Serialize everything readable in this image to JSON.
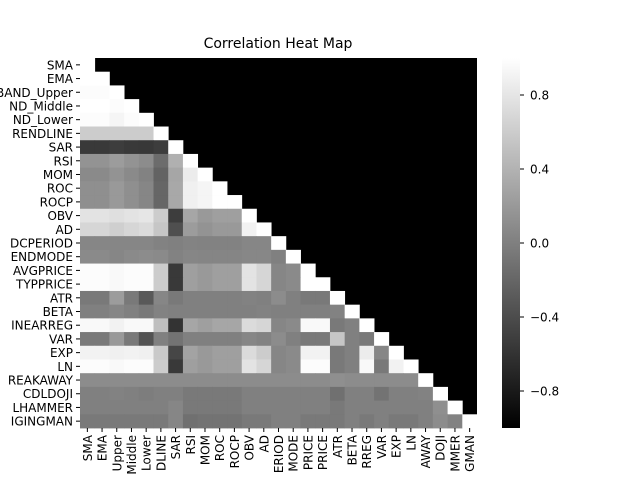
{
  "chart_data": {
    "type": "heatmap",
    "title": "Correlation Heat Map",
    "mask": "upper-triangle",
    "colormap": "grayscale",
    "labels": [
      "SMA",
      "EMA",
      "BBAND_Upper",
      "BBAND_Middle",
      "BBAND_Lower",
      "HT_TRENDLINE",
      "SAR",
      "RSI",
      "MOM",
      "ROC",
      "ROCP",
      "OBV",
      "AD",
      "HT_DCPERIOD",
      "HT_TRENDMODE",
      "AVGPRICE",
      "TYPPRICE",
      "ATR",
      "BETA",
      "LINEARREG",
      "VAR",
      "EXP",
      "LN",
      "CDLBREAKAWAY",
      "CDLDOJI",
      "CDLHAMMER",
      "CDLHANGINGMAN"
    ],
    "x_tick_labels": [
      "SMA",
      "EMA",
      "Upper",
      "Middle",
      "Lower",
      "DLINE",
      "SAR",
      "RSI",
      "MOM",
      "ROC",
      "ROCP",
      "OBV",
      "AD",
      "ERIOD",
      "MODE",
      "PRICE",
      "PRICE",
      "ATR",
      "BETA",
      "RREG",
      "VAR",
      "EXP",
      "LN",
      "AWAY",
      "DOJI",
      "MMER",
      "GMAN"
    ],
    "y_tick_labels": [
      "SMA",
      "EMA",
      "BAND_Upper",
      "ND_Middle",
      "ND_Lower",
      "RENDLINE",
      "SAR",
      "RSI",
      "MOM",
      "ROC",
      "ROCP",
      "OBV",
      "AD",
      "DCPERIOD",
      "ENDMODE",
      "AVGPRICE",
      "TYPPRICE",
      "ATR",
      "BETA",
      "INEARREG",
      "VAR",
      "EXP",
      "LN",
      "REAKAWAY",
      "CDLDOJI",
      "LHAMMER",
      "IGINGMAN"
    ],
    "matrix": [
      [
        1.0
      ],
      [
        1.0,
        1.0
      ],
      [
        0.98,
        0.98,
        1.0
      ],
      [
        1.0,
        1.0,
        0.98,
        1.0
      ],
      [
        0.98,
        0.98,
        0.92,
        0.98,
        1.0
      ],
      [
        0.6,
        0.6,
        0.6,
        0.6,
        0.6,
        1.0
      ],
      [
        -0.55,
        -0.55,
        -0.52,
        -0.55,
        -0.56,
        -0.52,
        1.0
      ],
      [
        0.15,
        0.15,
        0.22,
        0.15,
        0.1,
        -0.15,
        0.38,
        1.0
      ],
      [
        0.08,
        0.08,
        0.15,
        0.08,
        0.02,
        -0.22,
        0.3,
        0.85,
        1.0
      ],
      [
        0.12,
        0.12,
        0.2,
        0.12,
        0.05,
        -0.2,
        0.32,
        0.88,
        0.92,
        1.0
      ],
      [
        0.12,
        0.12,
        0.2,
        0.12,
        0.05,
        -0.2,
        0.32,
        0.88,
        0.92,
        1.0,
        1.0
      ],
      [
        0.78,
        0.78,
        0.75,
        0.78,
        0.8,
        0.6,
        -0.52,
        0.3,
        0.2,
        0.25,
        0.25,
        1.0
      ],
      [
        0.68,
        0.68,
        0.62,
        0.68,
        0.72,
        0.55,
        -0.38,
        0.22,
        0.15,
        0.2,
        0.2,
        0.9,
        1.0
      ],
      [
        0.05,
        0.05,
        0.05,
        0.05,
        0.05,
        0.02,
        0.0,
        0.03,
        0.02,
        0.02,
        0.02,
        0.05,
        0.05,
        1.0
      ],
      [
        0.08,
        0.08,
        0.05,
        0.08,
        0.1,
        0.08,
        0.02,
        0.05,
        0.04,
        0.04,
        0.04,
        0.06,
        0.06,
        0.0,
        1.0
      ],
      [
        0.98,
        0.98,
        0.95,
        0.98,
        0.98,
        0.6,
        -0.55,
        0.25,
        0.2,
        0.25,
        0.25,
        0.78,
        0.68,
        0.05,
        0.08,
        1.0
      ],
      [
        0.98,
        0.98,
        0.95,
        0.98,
        0.98,
        0.6,
        -0.55,
        0.25,
        0.2,
        0.25,
        0.25,
        0.78,
        0.68,
        0.05,
        0.08,
        1.0,
        1.0
      ],
      [
        -0.05,
        -0.05,
        0.22,
        -0.05,
        -0.3,
        0.05,
        -0.05,
        0.0,
        0.0,
        0.0,
        0.0,
        0.02,
        0.0,
        0.1,
        0.0,
        -0.05,
        -0.05,
        1.0
      ],
      [
        0.0,
        0.0,
        0.05,
        0.0,
        -0.05,
        0.02,
        0.0,
        0.0,
        0.0,
        0.0,
        0.0,
        0.0,
        0.02,
        0.0,
        0.0,
        0.0,
        0.0,
        0.02,
        1.0
      ],
      [
        0.95,
        0.95,
        0.9,
        0.95,
        0.95,
        0.5,
        -0.6,
        0.3,
        0.25,
        0.3,
        0.3,
        0.72,
        0.68,
        0.05,
        0.08,
        0.95,
        0.95,
        -0.05,
        0.0,
        1.0
      ],
      [
        -0.05,
        -0.05,
        0.2,
        -0.05,
        -0.35,
        0.0,
        -0.1,
        0.0,
        0.0,
        0.0,
        0.0,
        0.05,
        0.02,
        0.1,
        0.0,
        -0.05,
        -0.05,
        0.55,
        0.0,
        -0.05,
        1.0
      ],
      [
        0.9,
        0.9,
        0.88,
        0.9,
        0.88,
        0.58,
        -0.45,
        0.28,
        0.2,
        0.25,
        0.25,
        0.72,
        0.6,
        0.05,
        0.08,
        0.9,
        0.9,
        -0.05,
        0.0,
        0.85,
        0.05,
        1.0
      ],
      [
        0.98,
        0.98,
        0.95,
        0.98,
        0.98,
        0.6,
        -0.55,
        0.25,
        0.2,
        0.25,
        0.25,
        0.78,
        0.68,
        0.05,
        0.08,
        0.98,
        0.98,
        -0.05,
        0.0,
        0.95,
        -0.05,
        0.9,
        1.0
      ],
      [
        0.1,
        0.1,
        0.1,
        0.1,
        0.1,
        0.1,
        0.1,
        0.1,
        0.1,
        0.1,
        0.1,
        0.1,
        0.1,
        0.1,
        0.1,
        0.1,
        0.1,
        0.12,
        0.1,
        0.1,
        0.1,
        0.1,
        0.1,
        1.0
      ],
      [
        0.0,
        0.0,
        0.02,
        0.0,
        -0.02,
        0.0,
        0.0,
        -0.05,
        -0.05,
        -0.05,
        -0.05,
        0.0,
        0.0,
        0.0,
        0.0,
        0.0,
        0.0,
        -0.12,
        0.0,
        0.0,
        -0.1,
        0.0,
        0.0,
        0.02,
        1.0
      ],
      [
        0.0,
        0.0,
        0.0,
        0.0,
        0.0,
        0.0,
        0.05,
        -0.05,
        -0.05,
        -0.05,
        -0.05,
        0.0,
        0.0,
        0.0,
        0.0,
        0.0,
        0.0,
        -0.05,
        0.0,
        0.0,
        0.0,
        0.0,
        0.0,
        0.0,
        0.12,
        1.0
      ],
      [
        -0.05,
        -0.05,
        -0.05,
        -0.05,
        -0.05,
        -0.05,
        0.05,
        -0.12,
        -0.1,
        -0.1,
        -0.1,
        -0.05,
        -0.05,
        0.0,
        0.0,
        -0.05,
        -0.05,
        -0.05,
        0.0,
        -0.05,
        0.0,
        -0.05,
        -0.05,
        0.0,
        0.1,
        0.02,
        1.0
      ]
    ],
    "vmin": -1.0,
    "vmax": 1.0,
    "colorbar_ticks": [
      0.8,
      0.4,
      0.0,
      -0.4,
      -0.8
    ],
    "colorbar_tick_labels": [
      "0.8",
      "0.4",
      "0.0",
      "−0.4",
      "−0.8"
    ]
  }
}
